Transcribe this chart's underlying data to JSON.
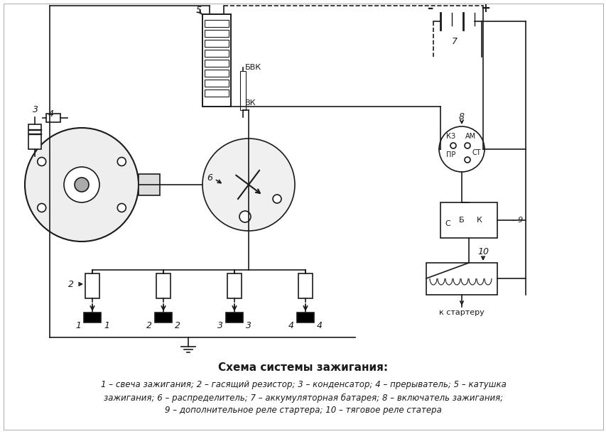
{
  "title": "Схема системы зажигания:",
  "caption_line1": "1 – свеча зажигания; 2 – гасящий резистор; 3 – конденсатор; 4 – прерыватель; 5 – катушка",
  "caption_line2": "зажигания; 6 – распределитель; 7 – аккумуляторная батарея; 8 – включатель зажигания;",
  "caption_line3": "9 – дополнительное реле стартера; 10 – тяговое реле статера",
  "bg_color": "#ffffff",
  "line_color": "#1a1a1a",
  "fig_width": 8.54,
  "fig_height": 6.11,
  "dpi": 100
}
